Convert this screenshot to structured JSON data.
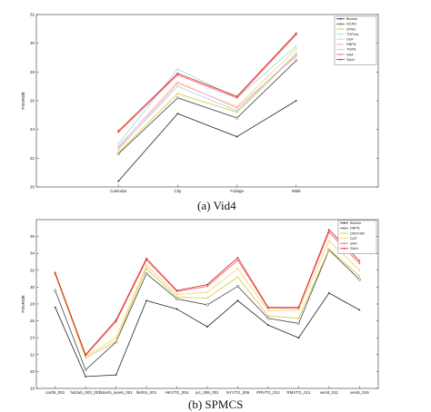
{
  "chart_data": [
    {
      "type": "line",
      "caption_tag": "(a)",
      "caption": "Vid4",
      "ylabel": "PSNR/dB",
      "ylim": [
        20,
        32
      ],
      "yticks": [
        20,
        22,
        24,
        26,
        28,
        30,
        32
      ],
      "categories": [
        "Calendar",
        "City",
        "Foliage",
        "Walk"
      ],
      "legend_position": "top-right",
      "series": [
        {
          "name": "Bicubic",
          "color": "#222222",
          "marker": "dot",
          "values": [
            20.4,
            25.1,
            23.5,
            26.0
          ]
        },
        {
          "name": "NCAN",
          "color": "#444444",
          "marker": "circle",
          "values": [
            22.3,
            26.2,
            24.8,
            28.8
          ]
        },
        {
          "name": "SPMC",
          "color": "#cccc44",
          "marker": "dot",
          "values": [
            22.4,
            26.5,
            25.2,
            29.2
          ]
        },
        {
          "name": "TOFlow",
          "color": "#99dddd",
          "marker": "dot",
          "values": [
            23.0,
            28.2,
            26.2,
            29.8
          ]
        },
        {
          "name": "DUF",
          "color": "#ffcc66",
          "marker": "dot",
          "values": [
            22.6,
            27.2,
            25.6,
            29.6
          ]
        },
        {
          "name": "RBPN",
          "color": "#ff99cc",
          "marker": "dot",
          "values": [
            22.8,
            27.3,
            25.5,
            29.1
          ]
        },
        {
          "name": "TDAN",
          "color": "#aaccee",
          "marker": "dot",
          "values": [
            22.7,
            27.0,
            25.3,
            29.3
          ]
        },
        {
          "name": "SAA",
          "color": "#ff5555",
          "marker": "dot",
          "values": [
            23.8,
            27.8,
            26.2,
            30.6
          ]
        },
        {
          "name": "SAA+",
          "color": "#cc2222",
          "marker": "dot",
          "values": [
            23.9,
            27.9,
            26.3,
            30.7
          ]
        }
      ]
    },
    {
      "type": "line",
      "caption_tag": "(b)",
      "caption": "SPMCS",
      "ylabel": "PSNR/dB",
      "ylim": [
        18,
        38
      ],
      "yticks": [
        18,
        20,
        22,
        24,
        26,
        28,
        30,
        32,
        34,
        36
      ],
      "categories": [
        "car05_001",
        "hdclub_003_001",
        "hitachi_isee5_001",
        "hk004_001",
        "HKVTG_004",
        "jvc_009_001",
        "NYVTG_006",
        "PRVTG_012",
        "RMVTG_011",
        "veni3_011",
        "veni5_015"
      ],
      "legend_position": "top-right",
      "series": [
        {
          "name": "Bicubic",
          "color": "#222222",
          "marker": "dot",
          "values": [
            27.6,
            19.4,
            19.6,
            28.4,
            27.4,
            25.3,
            28.4,
            25.5,
            24.0,
            29.3,
            27.3
          ]
        },
        {
          "name": "DBPN",
          "color": "#444444",
          "marker": "circle",
          "values": [
            29.6,
            20.2,
            23.5,
            31.6,
            28.6,
            27.9,
            30.1,
            26.3,
            25.7,
            34.4,
            30.9
          ]
        },
        {
          "name": "DRDVSR",
          "color": "#cccc44",
          "marker": "dot",
          "values": [
            31.5,
            21.6,
            23.6,
            32.2,
            28.8,
            28.7,
            31.2,
            26.6,
            26.3,
            34.5,
            31.3
          ]
        },
        {
          "name": "DUF",
          "color": "#ffcc66",
          "marker": "dot",
          "values": [
            31.8,
            21.8,
            24.0,
            32.6,
            29.1,
            29.4,
            32.2,
            27.2,
            27.3,
            35.5,
            32.0
          ]
        },
        {
          "name": "SAA",
          "color": "#ff5555",
          "marker": "dot",
          "values": [
            31.6,
            21.9,
            25.9,
            33.2,
            29.5,
            30.1,
            33.2,
            27.5,
            27.5,
            36.5,
            32.8
          ]
        },
        {
          "name": "SAA+",
          "color": "#cc2222",
          "marker": "dot",
          "values": [
            31.7,
            22.0,
            26.1,
            33.4,
            29.6,
            30.3,
            33.5,
            27.6,
            27.6,
            36.8,
            33.1
          ]
        }
      ]
    }
  ]
}
